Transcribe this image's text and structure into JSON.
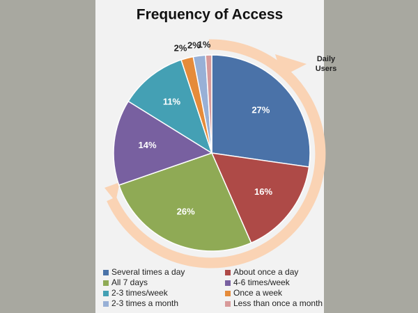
{
  "chart_data": {
    "type": "pie",
    "title": "Frequency of Access",
    "annotation": "Daily Users",
    "categories": [
      "Several times a day",
      "About once a day",
      "All 7 days",
      "4-6 times/week",
      "2-3 times/week",
      "Once a week",
      "2-3 times a month",
      "Less than once a month"
    ],
    "values": [
      27,
      16,
      26,
      14,
      11,
      2,
      2,
      1
    ],
    "value_labels": [
      "27%",
      "16%",
      "26%",
      "14%",
      "11%",
      "2%",
      "2%",
      "1%"
    ],
    "colors": [
      "#4a72a8",
      "#ae4a47",
      "#8faa55",
      "#7860a0",
      "#44a0b4",
      "#e58b3a",
      "#98b0d6",
      "#d89a9a"
    ],
    "legend": "bottom"
  }
}
